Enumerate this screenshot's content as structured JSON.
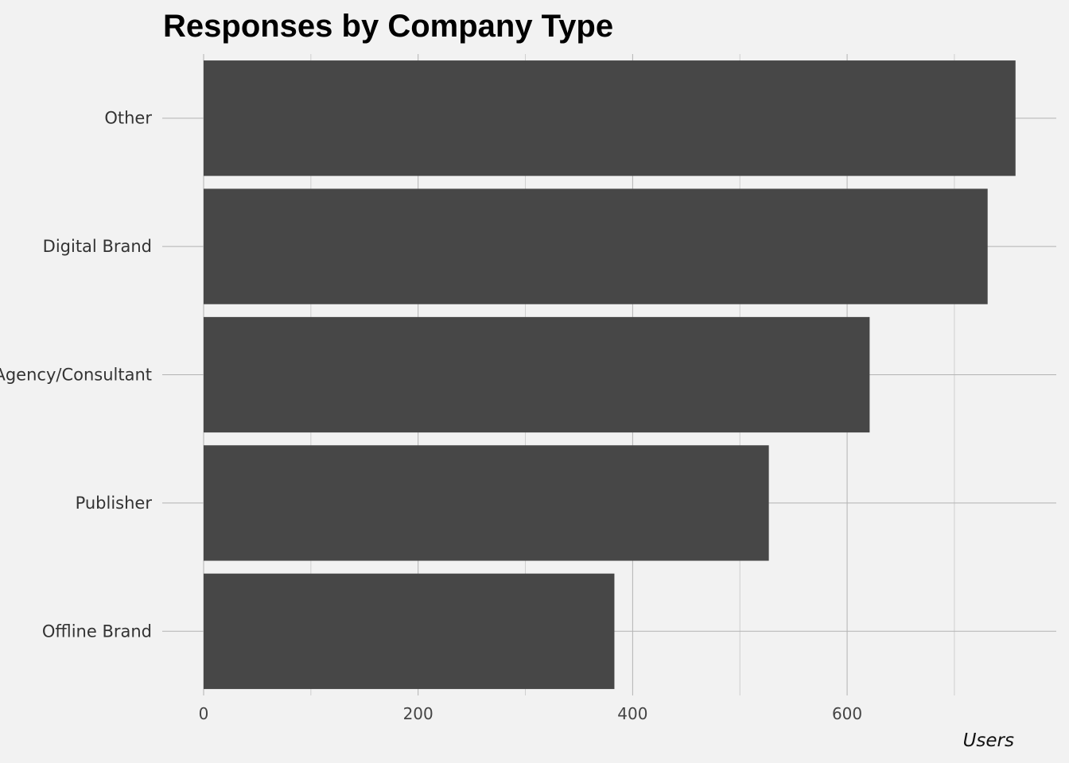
{
  "chart_data": {
    "type": "bar",
    "orientation": "horizontal",
    "title": "Responses by Company Type",
    "xlabel": "Users",
    "ylabel": "",
    "categories": [
      "Other",
      "Digital Brand",
      "Agency/Consultant",
      "Publisher",
      "Offline Brand"
    ],
    "values": [
      757,
      731,
      621,
      527,
      383
    ],
    "xlim": [
      0,
      795
    ],
    "xticks": [
      0,
      200,
      400,
      600
    ],
    "grid": true,
    "legend": "none",
    "bar_color": "#474747",
    "background": "#f2f2f2",
    "grid_major_color": "#b3b3b3",
    "grid_minor_color": "#cfcfcf"
  }
}
